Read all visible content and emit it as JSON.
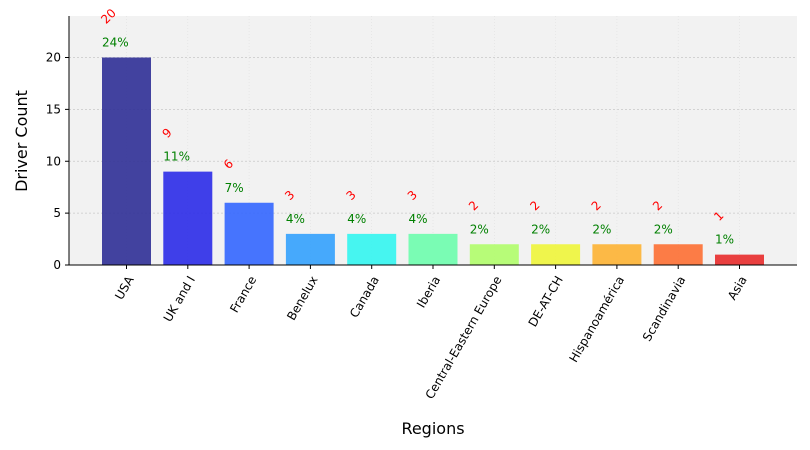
{
  "chart_data": {
    "type": "bar",
    "xlabel": "Regions",
    "ylabel": "Driver Count",
    "ylim": [
      0,
      24
    ],
    "yticks": [
      0,
      5,
      10,
      15,
      20
    ],
    "grid": true,
    "categories": [
      "USA",
      "UK and I",
      "France",
      "Benelux",
      "Canada",
      "Iberia",
      "Central-Eastern Europe",
      "DE-AT-CH",
      "Hispanoamérica",
      "Scandinavia",
      "Asia"
    ],
    "values": [
      20,
      9,
      6,
      3,
      3,
      3,
      2,
      2,
      2,
      2,
      1
    ],
    "count_labels": [
      "20",
      "9",
      "6",
      "3",
      "3",
      "3",
      "2",
      "2",
      "2",
      "2",
      "1"
    ],
    "percent_labels": [
      "24%",
      "11%",
      "7%",
      "4%",
      "4%",
      "4%",
      "2%",
      "2%",
      "2%",
      "2%",
      "1%"
    ],
    "colors": [
      "#2f2f96",
      "#2b2be8",
      "#3366ff",
      "#33a1fd",
      "#33f5f0",
      "#6dfdad",
      "#b0fd6a",
      "#eef53a",
      "#fdb233",
      "#fd6f33",
      "#e82b2b"
    ],
    "plot_background": "#f2f2f2",
    "count_label_color": "#ff0000",
    "percent_label_color": "#008000"
  }
}
